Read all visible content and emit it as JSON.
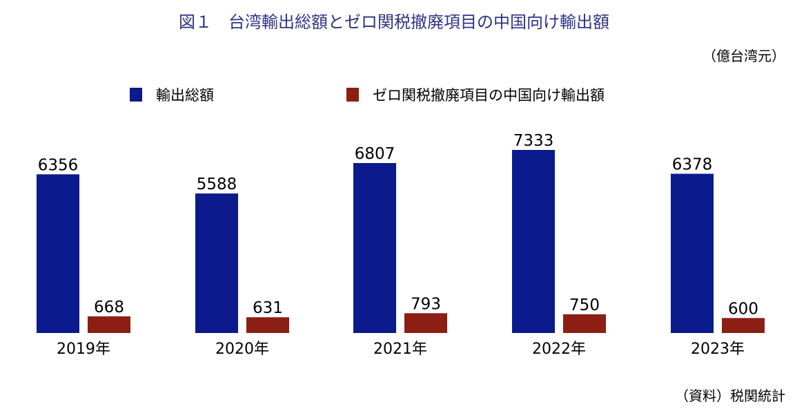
{
  "chart_data": {
    "type": "bar",
    "title": "図１　台湾輸出総額とゼロ関税撤廃項目の中国向け輸出額",
    "unit": "（億台湾元）",
    "source": "（資料）税関統計",
    "categories": [
      "2019年",
      "2020年",
      "2021年",
      "2022年",
      "2023年"
    ],
    "series": [
      {
        "name": "輸出総額",
        "color": "#0b1a8c",
        "values": [
          6356,
          5588,
          6807,
          7333,
          6378
        ]
      },
      {
        "name": "ゼロ関税撤廃項目の中国向け輸出額",
        "color": "#8b1f13",
        "values": [
          668,
          631,
          793,
          750,
          600
        ]
      }
    ],
    "ylim": [
      0,
      7333
    ],
    "grid": false,
    "legend_position": "top"
  }
}
